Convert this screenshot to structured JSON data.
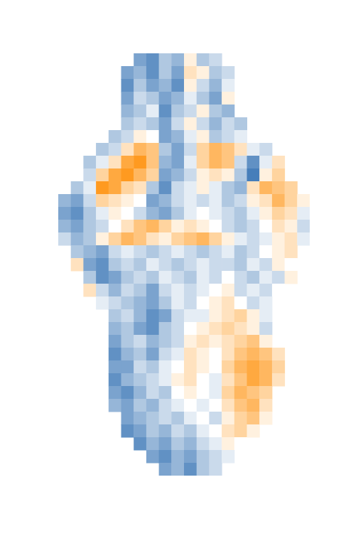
{
  "chart_data": {
    "type": "heatmap",
    "tick_labels": false,
    "zlim": [
      -0.8,
      0.8
    ],
    "cells": [
      [
        null,
        null,
        null,
        null,
        null,
        null,
        -0.5,
        -0.6,
        -0.3,
        -0.4,
        0.1,
        -0.3,
        -0.2,
        null,
        null,
        null,
        null,
        null,
        null,
        null
      ],
      [
        null,
        null,
        null,
        null,
        null,
        -0.5,
        -0.4,
        -0.6,
        -0.3,
        -0.5,
        0.2,
        0.1,
        -0.3,
        -0.2,
        null,
        null,
        null,
        null,
        null,
        null
      ],
      [
        null,
        null,
        null,
        null,
        null,
        -0.6,
        -0.3,
        -0.5,
        -0.4,
        -0.6,
        0.1,
        -0.2,
        -0.4,
        -0.1,
        null,
        null,
        null,
        null,
        null,
        null
      ],
      [
        null,
        null,
        null,
        null,
        null,
        -0.5,
        -0.2,
        -0.3,
        -0.5,
        -0.4,
        -0.1,
        -0.3,
        -0.5,
        0.1,
        null,
        null,
        null,
        null,
        null,
        null
      ],
      [
        null,
        null,
        null,
        null,
        null,
        -0.4,
        -0.3,
        -0.1,
        -0.6,
        -0.3,
        -0.2,
        0.1,
        -0.3,
        -0.4,
        null,
        null,
        null,
        null,
        null,
        null
      ],
      [
        null,
        null,
        null,
        null,
        null,
        -0.3,
        -0.2,
        -0.3,
        -0.5,
        -0.2,
        0.1,
        -0.2,
        -0.4,
        -0.2,
        -0.3,
        null,
        null,
        null,
        null,
        null
      ],
      [
        null,
        null,
        null,
        null,
        -0.3,
        -0.2,
        0.1,
        0.0,
        -0.5,
        -0.4,
        -0.1,
        0.1,
        -0.3,
        -0.2,
        -0.1,
        null,
        null,
        null,
        null,
        null
      ],
      [
        null,
        null,
        null,
        -0.3,
        -0.2,
        0.2,
        0.5,
        0.4,
        -0.3,
        -0.5,
        -0.2,
        0.3,
        0.5,
        0.4,
        0.2,
        -0.1,
        -0.2,
        null,
        null,
        null
      ],
      [
        null,
        null,
        -0.3,
        -0.1,
        0.2,
        0.6,
        0.7,
        0.4,
        -0.4,
        -0.5,
        -0.1,
        0.3,
        0.5,
        0.4,
        -0.2,
        -0.6,
        -0.1,
        0.2,
        null,
        null
      ],
      [
        null,
        null,
        -0.2,
        0.3,
        0.6,
        0.7,
        0.5,
        0.3,
        -0.5,
        -0.4,
        -0.2,
        0.1,
        0.2,
        0.1,
        -0.3,
        -0.7,
        0.1,
        0.3,
        null,
        null
      ],
      [
        null,
        -0.3,
        -0.1,
        0.7,
        0.6,
        0.3,
        0.2,
        -0.3,
        -0.6,
        -0.2,
        -0.1,
        0.1,
        -0.1,
        -0.3,
        -0.4,
        0.2,
        0.5,
        0.4,
        0.3,
        null
      ],
      [
        -0.4,
        -0.5,
        -0.2,
        0.3,
        0.2,
        0.1,
        0.0,
        -0.5,
        -0.4,
        -0.2,
        -0.1,
        -0.2,
        -0.1,
        -0.3,
        -0.2,
        0.1,
        0.2,
        0.5,
        0.3,
        0.1
      ],
      [
        -0.5,
        -0.6,
        -0.3,
        -0.1,
        0.1,
        0.0,
        -0.2,
        -0.4,
        -0.5,
        -0.3,
        -0.1,
        0.0,
        -0.1,
        -0.2,
        -0.3,
        -0.1,
        0.1,
        0.3,
        0.2,
        -0.1
      ],
      [
        -0.4,
        -0.5,
        -0.3,
        -0.2,
        0.0,
        0.2,
        0.4,
        0.5,
        0.3,
        0.1,
        0.2,
        0.1,
        0.0,
        -0.2,
        -0.3,
        -0.2,
        0.0,
        0.2,
        0.1,
        -0.2
      ],
      [
        -0.2,
        -0.4,
        -0.3,
        0.1,
        0.3,
        0.5,
        0.4,
        0.2,
        0.1,
        0.3,
        0.4,
        0.5,
        0.3,
        0.1,
        -0.1,
        -0.2,
        -0.1,
        0.1,
        0.2,
        -0.1
      ],
      [
        null,
        -0.3,
        -0.4,
        -0.5,
        -0.2,
        -0.1,
        -0.2,
        -0.3,
        -0.2,
        -0.1,
        -0.2,
        -0.3,
        -0.2,
        -0.1,
        -0.3,
        -0.2,
        0.0,
        0.1,
        0.2,
        null
      ],
      [
        null,
        0.2,
        -0.5,
        -0.6,
        -0.3,
        -0.2,
        -0.3,
        -0.1,
        -0.2,
        -0.3,
        -0.2,
        -0.1,
        -0.2,
        -0.2,
        -0.3,
        -0.1,
        -0.2,
        0.1,
        0.0,
        null
      ],
      [
        null,
        null,
        -0.3,
        -0.6,
        -0.5,
        -0.3,
        -0.2,
        -0.3,
        -0.1,
        -0.2,
        -0.3,
        -0.1,
        -0.2,
        0.0,
        -0.2,
        -0.3,
        -0.1,
        -0.2,
        0.1,
        null
      ],
      [
        null,
        null,
        0.2,
        -0.2,
        -0.4,
        -0.2,
        -0.3,
        -0.5,
        -0.2,
        -0.1,
        -0.2,
        -0.1,
        0.0,
        0.1,
        -0.2,
        -0.1,
        -0.2,
        0.0,
        null,
        null
      ],
      [
        null,
        null,
        null,
        -0.1,
        -0.2,
        -0.3,
        -0.4,
        -0.5,
        -0.3,
        -0.1,
        -0.2,
        0.0,
        0.1,
        0.2,
        0.0,
        -0.2,
        -0.1,
        null,
        null,
        null
      ],
      [
        null,
        null,
        null,
        null,
        -0.3,
        -0.2,
        -0.4,
        -0.6,
        -0.5,
        -0.2,
        -0.1,
        -0.1,
        0.1,
        0.2,
        0.3,
        0.1,
        -0.1,
        null,
        null,
        null
      ],
      [
        null,
        null,
        null,
        null,
        -0.4,
        -0.3,
        -0.5,
        -0.6,
        -0.3,
        -0.2,
        0.0,
        0.1,
        0.2,
        0.3,
        0.2,
        0.1,
        -0.2,
        null,
        null,
        null
      ],
      [
        null,
        null,
        null,
        null,
        -0.5,
        -0.3,
        -0.2,
        -0.4,
        -0.3,
        -0.2,
        0.1,
        0.2,
        0.1,
        0.2,
        0.3,
        0.4,
        0.1,
        null,
        null,
        null
      ],
      [
        null,
        null,
        null,
        null,
        -0.6,
        -0.4,
        -0.3,
        -0.5,
        -0.2,
        -0.1,
        0.2,
        0.1,
        0.0,
        0.2,
        0.4,
        0.5,
        0.4,
        0.2,
        null,
        null
      ],
      [
        null,
        null,
        null,
        null,
        -0.5,
        -0.5,
        -0.2,
        -0.3,
        -0.1,
        0.0,
        0.2,
        0.1,
        0.0,
        0.3,
        0.5,
        0.6,
        0.5,
        0.3,
        null,
        null
      ],
      [
        null,
        null,
        null,
        null,
        -0.6,
        -0.4,
        -0.3,
        -0.2,
        -0.1,
        0.1,
        0.2,
        0.0,
        -0.1,
        0.2,
        0.4,
        0.6,
        0.5,
        0.2,
        null,
        null
      ],
      [
        null,
        null,
        null,
        null,
        -0.5,
        -0.6,
        -0.4,
        -0.2,
        -0.3,
        0.0,
        0.1,
        0.0,
        -0.1,
        0.3,
        0.5,
        0.4,
        0.3,
        null,
        null,
        null
      ],
      [
        null,
        null,
        null,
        null,
        -0.4,
        -0.5,
        -0.3,
        -0.4,
        -0.2,
        -0.1,
        0.0,
        -0.1,
        0.0,
        0.2,
        0.4,
        0.5,
        0.2,
        null,
        null,
        null
      ],
      [
        null,
        null,
        null,
        null,
        null,
        -0.5,
        -0.4,
        -0.3,
        -0.2,
        -0.3,
        -0.1,
        0.0,
        -0.2,
        0.1,
        0.3,
        0.4,
        0.1,
        null,
        null,
        null
      ],
      [
        null,
        null,
        null,
        null,
        null,
        -0.6,
        -0.5,
        -0.3,
        -0.4,
        -0.2,
        -0.3,
        -0.1,
        0.0,
        0.2,
        0.3,
        0.1,
        null,
        null,
        null,
        null
      ],
      [
        null,
        null,
        null,
        null,
        null,
        null,
        -0.6,
        -0.4,
        -0.5,
        -0.3,
        -0.4,
        -0.2,
        -0.1,
        0.1,
        0.0,
        null,
        null,
        null,
        null,
        null
      ],
      [
        null,
        null,
        null,
        null,
        null,
        null,
        null,
        -0.5,
        -0.6,
        -0.4,
        -0.5,
        -0.3,
        -0.2,
        -0.1,
        null,
        null,
        null,
        null,
        null,
        null
      ],
      [
        null,
        null,
        null,
        null,
        null,
        null,
        null,
        null,
        -0.5,
        -0.4,
        -0.6,
        -0.3,
        -0.2,
        null,
        null,
        null,
        null,
        null,
        null,
        null
      ]
    ]
  }
}
